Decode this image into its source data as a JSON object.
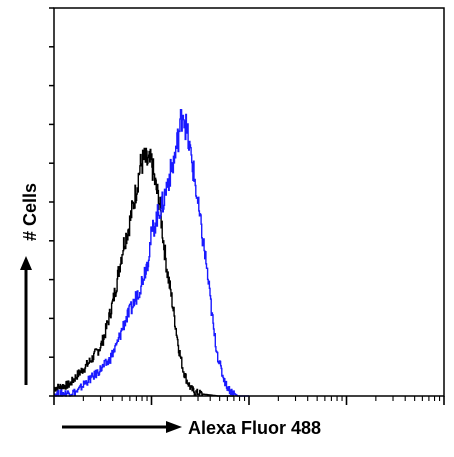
{
  "chart_data": {
    "type": "line",
    "title": "",
    "xlabel": "Alexa Fluor 488",
    "ylabel": "# Cells",
    "x_scale": "log",
    "x_decades": 4,
    "ylim": [
      0,
      10
    ],
    "y_major_ticks": [
      0,
      1,
      2,
      3,
      4,
      5,
      6,
      7,
      8,
      9,
      10
    ],
    "grid": false,
    "legend": "none",
    "colors": {
      "control": "#000000",
      "sample": "#1a1aff",
      "axis": "#000000"
    },
    "series": [
      {
        "color": "#000000",
        "points": [
          [
            0.0,
            0.2
          ],
          [
            0.02,
            0.25
          ],
          [
            0.04,
            0.3
          ],
          [
            0.06,
            0.55
          ],
          [
            0.08,
            0.75
          ],
          [
            0.1,
            1.0
          ],
          [
            0.12,
            1.3
          ],
          [
            0.13,
            1.6
          ],
          [
            0.14,
            2.0
          ],
          [
            0.15,
            2.4
          ],
          [
            0.16,
            2.9
          ],
          [
            0.17,
            3.5
          ],
          [
            0.18,
            4.0
          ],
          [
            0.19,
            4.3
          ],
          [
            0.2,
            4.8
          ],
          [
            0.21,
            5.3
          ],
          [
            0.22,
            5.9
          ],
          [
            0.23,
            6.1
          ],
          [
            0.24,
            6.0
          ],
          [
            0.25,
            6.0
          ],
          [
            0.255,
            5.7
          ],
          [
            0.26,
            5.4
          ],
          [
            0.27,
            5.0
          ],
          [
            0.28,
            4.0
          ],
          [
            0.29,
            3.2
          ],
          [
            0.3,
            2.6
          ],
          [
            0.31,
            1.9
          ],
          [
            0.32,
            1.2
          ],
          [
            0.33,
            0.7
          ],
          [
            0.34,
            0.4
          ],
          [
            0.35,
            0.2
          ],
          [
            0.36,
            0.1
          ],
          [
            0.38,
            0.05
          ],
          [
            0.42,
            0.0
          ],
          [
            0.46,
            0.0
          ]
        ]
      },
      {
        "color": "#1a1aff",
        "points": [
          [
            0.0,
            0.05
          ],
          [
            0.04,
            0.08
          ],
          [
            0.06,
            0.12
          ],
          [
            0.08,
            0.35
          ],
          [
            0.1,
            0.5
          ],
          [
            0.12,
            0.7
          ],
          [
            0.14,
            0.9
          ],
          [
            0.16,
            1.3
          ],
          [
            0.18,
            1.9
          ],
          [
            0.2,
            2.3
          ],
          [
            0.22,
            2.8
          ],
          [
            0.24,
            3.5
          ],
          [
            0.25,
            4.2
          ],
          [
            0.26,
            4.5
          ],
          [
            0.27,
            4.8
          ],
          [
            0.28,
            5.0
          ],
          [
            0.29,
            5.5
          ],
          [
            0.3,
            5.8
          ],
          [
            0.31,
            6.2
          ],
          [
            0.32,
            6.8
          ],
          [
            0.33,
            7.4
          ],
          [
            0.34,
            6.8
          ],
          [
            0.35,
            6.2
          ],
          [
            0.36,
            5.6
          ],
          [
            0.37,
            4.8
          ],
          [
            0.38,
            4.1
          ],
          [
            0.39,
            3.4
          ],
          [
            0.4,
            2.5
          ],
          [
            0.41,
            1.6
          ],
          [
            0.42,
            1.0
          ],
          [
            0.43,
            0.6
          ],
          [
            0.44,
            0.3
          ],
          [
            0.45,
            0.15
          ],
          [
            0.47,
            0.0
          ],
          [
            0.5,
            0.0
          ]
        ]
      }
    ]
  }
}
